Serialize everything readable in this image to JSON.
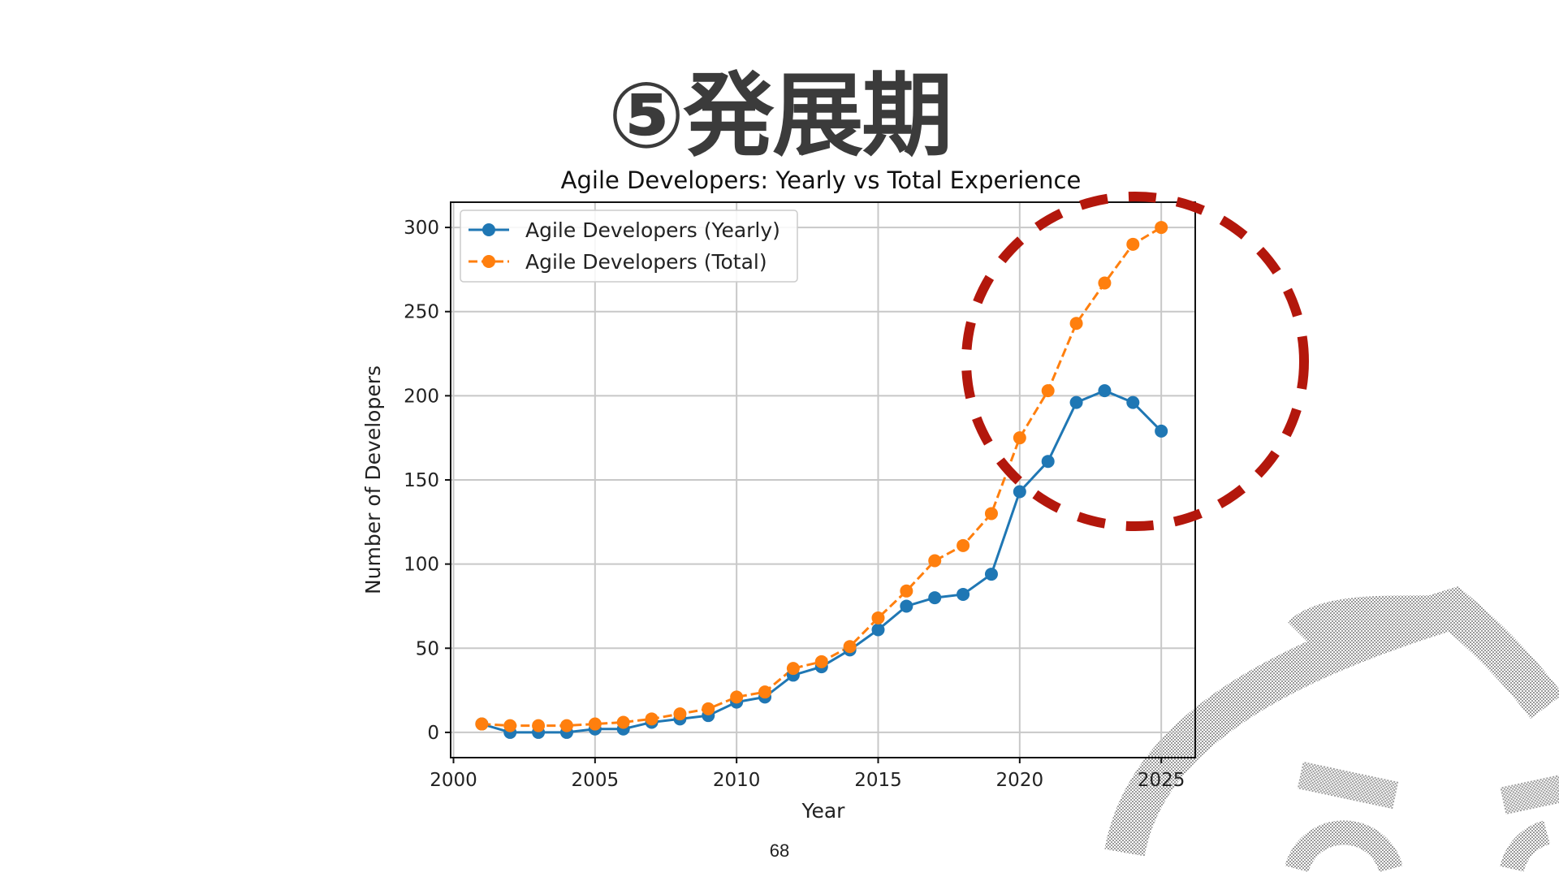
{
  "slide": {
    "title": "⑤発展期",
    "page_number": "68"
  },
  "colors": {
    "yearly": "#1f77b4",
    "total": "#ff7f0e",
    "highlight": "#b3170c",
    "watermark": "#9a9a9a"
  },
  "chart_data": {
    "type": "line",
    "title": "Agile Developers: Yearly vs Total Experience",
    "xlabel": "Year",
    "ylabel": "Number of Developers",
    "xlim": [
      1999.9,
      2026.2
    ],
    "ylim": [
      -15,
      315
    ],
    "xticks": [
      2000,
      2005,
      2010,
      2015,
      2020,
      2025
    ],
    "yticks": [
      0,
      50,
      100,
      150,
      200,
      250,
      300
    ],
    "grid": true,
    "legend_position": "top-left",
    "x": [
      2001,
      2002,
      2003,
      2004,
      2005,
      2006,
      2007,
      2008,
      2009,
      2010,
      2011,
      2012,
      2013,
      2014,
      2015,
      2016,
      2017,
      2018,
      2019,
      2020,
      2021,
      2022,
      2023,
      2024,
      2025
    ],
    "series": [
      {
        "name": "Agile Developers (Yearly)",
        "style": "solid",
        "values": [
          5,
          0,
          0,
          0,
          2,
          2,
          6,
          8,
          10,
          18,
          21,
          34,
          39,
          49,
          61,
          75,
          80,
          82,
          94,
          143,
          161,
          196,
          203,
          196,
          179
        ]
      },
      {
        "name": "Agile Developers (Total)",
        "style": "dashed",
        "values": [
          5,
          4,
          4,
          4,
          5,
          6,
          8,
          11,
          14,
          21,
          24,
          38,
          42,
          51,
          68,
          84,
          102,
          111,
          130,
          175,
          203,
          243,
          267,
          290,
          300
        ]
      }
    ],
    "annotation": "red dashed circle highlighting 2020-2025"
  }
}
